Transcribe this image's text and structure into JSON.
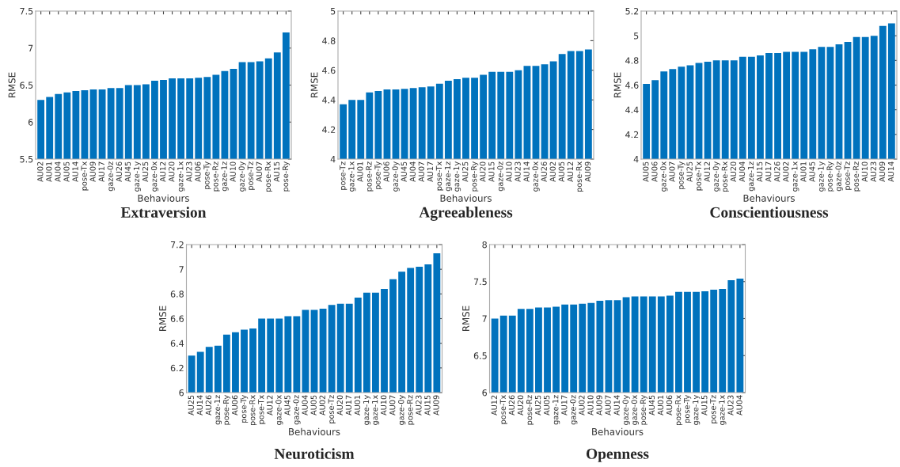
{
  "chart_data": [
    {
      "type": "bar",
      "title": "Extraversion",
      "xlabel": "Behaviours",
      "ylabel": "RMSE",
      "color": "#0072bd",
      "ylim": [
        5.5,
        7.5
      ],
      "yticks": [
        5.5,
        6,
        6.5,
        7,
        7.5
      ],
      "grid": false,
      "legend": false,
      "categories": [
        "AU02",
        "AU01",
        "AU04",
        "AU05",
        "AU14",
        "pose-Tx",
        "AU09",
        "AU17",
        "gaze-0z",
        "AU26",
        "AU45",
        "gaze-1y",
        "AU25",
        "gaze-0x",
        "AU12",
        "AU20",
        "gaze-1x",
        "AU23",
        "AU06",
        "pose-Ty",
        "pose-Rz",
        "gaze-1z",
        "AU10",
        "gaze-0y",
        "pose-Tz",
        "AU07",
        "pose-Rx",
        "AU15",
        "pose-Ry"
      ],
      "values": [
        6.3,
        6.34,
        6.38,
        6.4,
        6.42,
        6.43,
        6.44,
        6.44,
        6.46,
        6.46,
        6.5,
        6.5,
        6.51,
        6.56,
        6.57,
        6.59,
        6.59,
        6.59,
        6.6,
        6.61,
        6.64,
        6.69,
        6.72,
        6.81,
        6.81,
        6.82,
        6.86,
        6.94,
        7.21
      ]
    },
    {
      "type": "bar",
      "title": "Agreeableness",
      "xlabel": "Behaviours",
      "ylabel": "RMSE",
      "color": "#0072bd",
      "ylim": [
        4,
        5
      ],
      "yticks": [
        4,
        4.2,
        4.4,
        4.6,
        4.8,
        5
      ],
      "grid": false,
      "legend": false,
      "categories": [
        "pose-Tz",
        "gaze-1x",
        "AU01",
        "pose-Rz",
        "pose-Ty",
        "AU06",
        "gaze-0y",
        "AU45",
        "AU04",
        "AU07",
        "AU17",
        "pose-Tx",
        "gaze-1z",
        "gaze-1y",
        "AU25",
        "pose-Ry",
        "AU20",
        "AU15",
        "gaze-0z",
        "AU10",
        "AU23",
        "AU14",
        "gaze-0x",
        "AU26",
        "AU02",
        "AU05",
        "AU12",
        "pose-Rx",
        "AU09"
      ],
      "values": [
        4.37,
        4.4,
        4.4,
        4.45,
        4.46,
        4.47,
        4.47,
        4.475,
        4.48,
        4.485,
        4.49,
        4.51,
        4.53,
        4.54,
        4.55,
        4.55,
        4.57,
        4.59,
        4.59,
        4.59,
        4.6,
        4.63,
        4.63,
        4.64,
        4.66,
        4.71,
        4.73,
        4.73,
        4.74
      ]
    },
    {
      "type": "bar",
      "title": "Conscientiousness",
      "xlabel": "Behaviours",
      "ylabel": "RMSE",
      "color": "#0072bd",
      "ylim": [
        4,
        5.2
      ],
      "yticks": [
        4,
        4.2,
        4.4,
        4.6,
        4.8,
        5,
        5.2
      ],
      "grid": false,
      "legend": false,
      "categories": [
        "AU05",
        "AU06",
        "gaze-0x",
        "AU07",
        "pose-Ty",
        "AU25",
        "pose-Tx",
        "AU12",
        "gaze-0y",
        "pose-Rx",
        "AU20",
        "AU04",
        "gaze-1z",
        "AU15",
        "AU17",
        "AU26",
        "AU02",
        "gaze-1x",
        "AU01",
        "AU45",
        "gaze-1y",
        "pose-Ry",
        "gaze-0z",
        "pose-Tz",
        "pose-Rz",
        "AU10",
        "AU23",
        "AU09",
        "AU14"
      ],
      "values": [
        4.61,
        4.64,
        4.71,
        4.73,
        4.75,
        4.76,
        4.78,
        4.79,
        4.8,
        4.8,
        4.8,
        4.83,
        4.83,
        4.84,
        4.86,
        4.86,
        4.87,
        4.87,
        4.87,
        4.89,
        4.91,
        4.91,
        4.93,
        4.95,
        4.99,
        4.99,
        5.0,
        5.08,
        5.1
      ]
    },
    {
      "type": "bar",
      "title": "Neuroticism",
      "xlabel": "Behaviours",
      "ylabel": "RMSE",
      "color": "#0072bd",
      "ylim": [
        6,
        7.2
      ],
      "yticks": [
        6,
        6.2,
        6.4,
        6.6,
        6.8,
        7,
        7.2
      ],
      "grid": false,
      "legend": false,
      "categories": [
        "AU25",
        "AU14",
        "AU26",
        "gaze-1z",
        "pose-Ry",
        "AU06",
        "pose-Ty",
        "pose-Rx",
        "pose-Tx",
        "AU12",
        "gaze-0x",
        "AU45",
        "gaze-0z",
        "AU04",
        "AU05",
        "AU02",
        "pose-Tz",
        "AU20",
        "AU17",
        "AU01",
        "gaze-1y",
        "gaze-1x",
        "AU10",
        "AU07",
        "gaze-0y",
        "pose-Rz",
        "AU23",
        "AU15",
        "AU09"
      ],
      "values": [
        6.3,
        6.33,
        6.37,
        6.38,
        6.47,
        6.49,
        6.51,
        6.52,
        6.6,
        6.6,
        6.6,
        6.62,
        6.62,
        6.67,
        6.67,
        6.68,
        6.71,
        6.72,
        6.72,
        6.77,
        6.81,
        6.81,
        6.84,
        6.92,
        6.98,
        7.01,
        7.02,
        7.04,
        7.13
      ]
    },
    {
      "type": "bar",
      "title": "Openness",
      "xlabel": "Behaviours",
      "ylabel": "RMSE",
      "color": "#0072bd",
      "ylim": [
        6,
        8
      ],
      "yticks": [
        6,
        6.5,
        7,
        7.5,
        8
      ],
      "grid": false,
      "legend": false,
      "categories": [
        "AU12",
        "pose-Tx",
        "AU26",
        "AU20",
        "pose-Rz",
        "AU25",
        "AU05",
        "gaze-1z",
        "AU17",
        "gaze-0z",
        "AU02",
        "AU10",
        "AU09",
        "AU07",
        "AU14",
        "gaze-0y",
        "gaze-0x",
        "pose-Ry",
        "AU45",
        "AU01",
        "AU06",
        "pose-Rx",
        "pose-Ty",
        "gaze-1y",
        "AU15",
        "pose-Tz",
        "gaze-1x",
        "AU23",
        "AU04"
      ],
      "values": [
        7.0,
        7.04,
        7.04,
        7.13,
        7.13,
        7.15,
        7.15,
        7.16,
        7.19,
        7.19,
        7.2,
        7.21,
        7.24,
        7.25,
        7.25,
        7.29,
        7.3,
        7.3,
        7.3,
        7.3,
        7.31,
        7.36,
        7.36,
        7.36,
        7.37,
        7.39,
        7.4,
        7.52,
        7.54
      ]
    }
  ]
}
